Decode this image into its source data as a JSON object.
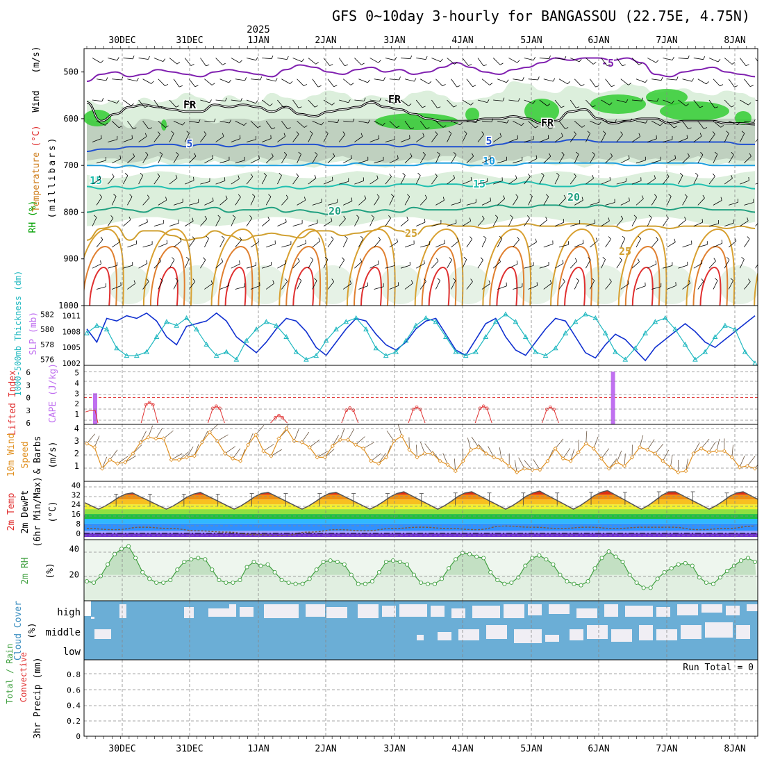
{
  "title": "GFS 0~10day 3-hourly for BANGASSOU (22.75E, 4.75N)",
  "year_label": "2025",
  "date_labels": [
    "30DEC",
    "31DEC",
    "1JAN",
    "2JAN",
    "3JAN",
    "4JAN",
    "5JAN",
    "6JAN",
    "7JAN",
    "8JAN"
  ],
  "run_total_label": "Run Total = 0",
  "colors": {
    "rh_green": "#33cc33",
    "rh_light": "#dcefdc",
    "rh_gray": "#b8c8b8",
    "slp": "#1030d0",
    "thickness": "#20b8c0",
    "cape": "#c070f0",
    "li": "#e03030",
    "wind_speed": "#e09020",
    "cloud": "#6baed6",
    "cloud_gap": "#f0eef4",
    "rh2m": "#40a040"
  },
  "panels": {
    "upper": {
      "ylabel_wind": "Wind",
      "ylabel_wind_unit": "(m/s)",
      "ylabel_temp": "Temperature",
      "ylabel_temp_unit": "(°C)",
      "ylabel_rh": "RH (%)",
      "ylabel_axis": "(millibars)",
      "yticks": [
        "500",
        "600",
        "700",
        "800",
        "900",
        "1000"
      ],
      "ylim": [
        450,
        1000
      ],
      "isotherms": [
        {
          "label": "-5",
          "value": -5,
          "pressure": [
            520,
            505,
            500,
            510,
            505,
            495,
            500,
            505,
            510,
            500,
            495,
            500,
            505,
            510,
            495,
            485,
            490,
            500,
            505,
            495,
            490,
            500,
            495,
            505,
            500,
            490,
            480,
            490,
            500,
            505,
            495,
            490,
            480,
            470,
            475,
            470,
            470,
            475,
            470,
            480,
            505,
            510,
            500,
            495,
            490,
            500,
            505,
            510
          ],
          "color": "#8020b0"
        },
        {
          "label": "FR",
          "value": 0,
          "pressure": [
            565,
            605,
            590,
            575,
            570,
            575,
            580,
            585,
            585,
            570,
            575,
            570,
            575,
            585,
            575,
            590,
            595,
            585,
            580,
            575,
            565,
            575,
            580,
            590,
            600,
            605,
            605,
            605,
            600,
            600,
            595,
            600,
            610,
            605,
            585,
            580,
            600,
            610,
            605,
            600,
            600,
            610,
            605,
            605,
            605,
            610,
            610,
            612
          ],
          "color": "#000000"
        },
        {
          "label": "5",
          "value": 5,
          "pressure": [
            670,
            665,
            665,
            660,
            660,
            655,
            655,
            660,
            655,
            655,
            660,
            655,
            655,
            660,
            655,
            655,
            655,
            660,
            660,
            655,
            655,
            655,
            660,
            655,
            660,
            660,
            660,
            660,
            660,
            655,
            650,
            650,
            650,
            650,
            645,
            645,
            650,
            650,
            650,
            650,
            650,
            650,
            650,
            650,
            650,
            650,
            655,
            655
          ],
          "color": "#2050d0"
        },
        {
          "label": "10",
          "value": 10,
          "pressure": [
            700,
            700,
            705,
            700,
            705,
            700,
            700,
            700,
            700,
            700,
            700,
            700,
            700,
            700,
            700,
            700,
            695,
            700,
            700,
            695,
            700,
            700,
            700,
            700,
            695,
            695,
            695,
            700,
            700,
            700,
            700,
            695,
            695,
            695,
            695,
            695,
            695,
            695,
            700,
            700,
            695,
            695,
            695,
            695,
            700,
            700,
            700,
            700
          ],
          "color": "#20a0e0"
        },
        {
          "label": "15",
          "value": 15,
          "pressure": [
            745,
            750,
            745,
            750,
            745,
            745,
            750,
            750,
            745,
            745,
            750,
            745,
            750,
            750,
            745,
            750,
            745,
            745,
            740,
            745,
            745,
            745,
            740,
            740,
            745,
            740,
            740,
            745,
            740,
            735,
            740,
            735,
            740,
            745,
            745,
            740,
            740,
            745,
            740,
            740,
            740,
            740,
            745,
            740,
            745,
            745,
            745,
            750
          ],
          "color": "#20c0b0"
        },
        {
          "label": "20",
          "value": 20,
          "pressure": [
            800,
            795,
            790,
            795,
            800,
            790,
            795,
            790,
            795,
            790,
            800,
            795,
            795,
            790,
            800,
            795,
            800,
            805,
            800,
            795,
            800,
            795,
            800,
            790,
            795,
            795,
            795,
            790,
            790,
            785,
            790,
            790,
            785,
            785,
            790,
            790,
            785,
            790,
            790,
            790,
            790,
            795,
            790,
            790,
            795,
            795,
            795,
            800
          ],
          "color": "#20a080"
        },
        {
          "label": "25",
          "value": 25,
          "pressure": [
            860,
            835,
            830,
            860,
            840,
            840,
            850,
            860,
            855,
            840,
            850,
            860,
            850,
            845,
            850,
            855,
            840,
            840,
            850,
            845,
            840,
            830,
            840,
            850,
            830,
            825,
            830,
            830,
            835,
            830,
            830,
            825,
            830,
            830,
            825,
            825,
            830,
            830,
            840,
            830,
            830,
            835,
            830,
            830,
            830,
            835,
            830,
            835
          ],
          "color": "#d0a030"
        }
      ],
      "rh_high_pressure_top": [
        560,
        570,
        560,
        580,
        555,
        565,
        560,
        545,
        555,
        570,
        550,
        560,
        565,
        545,
        555,
        560,
        550,
        540,
        545,
        560,
        550,
        555,
        560,
        545,
        540,
        550,
        565,
        560,
        555,
        545,
        520,
        525,
        540,
        545,
        530,
        535,
        545,
        540,
        525,
        530,
        545,
        540,
        535,
        545,
        550,
        540,
        545,
        555
      ],
      "rh_high_pressure_bottom": [
        700,
        695,
        695,
        705,
        700,
        690,
        700,
        695,
        700,
        690,
        700,
        705,
        690,
        700,
        695,
        700,
        705,
        695,
        690,
        700,
        700,
        705,
        700,
        695,
        700,
        690,
        690,
        705,
        695,
        700,
        700,
        690,
        695,
        700,
        695,
        705,
        695,
        700,
        690,
        700,
        695,
        700,
        700,
        690,
        700,
        695,
        700,
        700
      ]
    },
    "slp": {
      "ylabel_thk": "1000-500mb Thickness (dm)",
      "ylabel_slp": "SLP (mb)",
      "thk_ticks": [
        "582",
        "580",
        "578",
        "576"
      ],
      "slp_ticks": [
        "1011",
        "1008",
        "1005",
        "1002"
      ],
      "slp_lim": [
        1002,
        1012
      ],
      "slp": [
        1008.5,
        1006.0,
        1010.5,
        1010.0,
        1011.0,
        1010.5,
        1011.5,
        1010.0,
        1007.0,
        1005.5,
        1009.0,
        1009.5,
        1010.0,
        1011.5,
        1010.0,
        1007.0,
        1005.5,
        1004.0,
        1006.0,
        1008.5,
        1010.5,
        1010.0,
        1008.0,
        1005.0,
        1003.5,
        1006.0,
        1008.5,
        1010.5,
        1010.0,
        1007.5,
        1005.5,
        1004.5,
        1006.0,
        1008.5,
        1010.0,
        1010.5,
        1007.5,
        1004.5,
        1003.5,
        1006.5,
        1009.5,
        1010.5,
        1007.0,
        1004.5,
        1003.5,
        1006.0,
        1008.5,
        1010.5,
        1010.0,
        1007.0,
        1004.0,
        1003.0,
        1005.5,
        1007.5,
        1006.5,
        1004.5,
        1002.5,
        1005.0,
        1006.5,
        1008.0,
        1009.5,
        1008.0,
        1006.0,
        1005.0,
        1006.5,
        1008.0,
        1009.5,
        1011.0
      ],
      "thk": [
        579.5,
        580.5,
        580.0,
        577.5,
        576.5,
        576.5,
        577.0,
        579.0,
        581.0,
        580.5,
        581.5,
        580.0,
        578.0,
        576.5,
        577.0,
        576.0,
        578.5,
        580.0,
        581.0,
        580.5,
        579.0,
        577.0,
        576.0,
        576.5,
        578.5,
        580.0,
        581.0,
        581.5,
        580.0,
        577.5,
        576.5,
        577.0,
        578.5,
        580.5,
        581.5,
        581.0,
        579.0,
        577.0,
        576.5,
        577.0,
        579.0,
        581.0,
        582.0,
        581.0,
        579.0,
        577.0,
        576.5,
        577.5,
        579.5,
        581.0,
        582.0,
        581.5,
        579.5,
        577.0,
        576.0,
        577.5,
        579.5,
        581.0,
        581.5,
        580.0,
        578.0,
        576.0,
        577.0,
        579.0,
        580.5,
        580.0,
        577.0,
        575.5
      ]
    },
    "cape": {
      "ylabel_li": "Lifted Index",
      "ylabel_cape": "CAPE (J/kg)",
      "li_ticks": [
        "-6",
        "-3",
        "0",
        "3",
        "6"
      ],
      "cape_ticks": [
        "5",
        "4",
        "3",
        "2",
        "1"
      ],
      "cape_bars": [
        {
          "index": 1,
          "value": 3.0
        },
        {
          "index": 63,
          "value": 5.1
        }
      ],
      "li_segments": [
        [
          0,
          1.8
        ],
        [
          1,
          1.6
        ],
        [
          1,
          2.0
        ]
      ],
      "li_bumps": [
        {
          "center": 7.5,
          "height": 2.2
        },
        {
          "center": 15.5,
          "height": 1.8
        },
        {
          "center": 23.0,
          "height": 0.8
        },
        {
          "center": 31.5,
          "height": 1.6
        },
        {
          "center": 39.5,
          "height": 1.7
        },
        {
          "center": 47.5,
          "height": 1.8
        },
        {
          "center": 55.5,
          "height": 1.7
        }
      ]
    },
    "wind": {
      "ylabel1": "10m Wind",
      "ylabel2": "Speed",
      "ylabel3": "& Barbs",
      "ylabel_unit": "(m/s)",
      "yticks": [
        "4",
        "3",
        "2",
        "1"
      ],
      "ylim": [
        0,
        4
      ],
      "speed": [
        2.8,
        2.5,
        0.8,
        1.5,
        1.2,
        1.3,
        2.0,
        2.9,
        3.3,
        3.2,
        3.2,
        1.5,
        1.5,
        1.7,
        1.8,
        2.9,
        3.7,
        3.0,
        2.0,
        1.6,
        1.4,
        2.7,
        3.5,
        2.2,
        1.8,
        3.2,
        4.0,
        3.0,
        2.9,
        2.5,
        1.7,
        1.7,
        2.6,
        3.1,
        3.1,
        2.7,
        2.4,
        1.4,
        1.2,
        1.7,
        3.0,
        3.4,
        2.3,
        1.7,
        2.0,
        2.0,
        1.4,
        1.1,
        0.6,
        1.4,
        2.3,
        2.5,
        2.0,
        1.7,
        1.5,
        1.0,
        0.5,
        0.8,
        0.7,
        0.7,
        1.4,
        2.4,
        1.6,
        1.4,
        2.1,
        2.8,
        2.4,
        1.6,
        0.8,
        1.3,
        1.0,
        1.7,
        2.5,
        2.3,
        2.0,
        1.4,
        0.9,
        0.5,
        0.6,
        2.0,
        2.4,
        2.1,
        2.2,
        2.2,
        1.7,
        0.9,
        1.0,
        0.8
      ]
    },
    "temp": {
      "ylabel1": "2m Temp",
      "ylabel2": "2m DewPt",
      "ylabel3": "(6hr Min/Max)",
      "ylabel_unit": "(°C)",
      "yticks": [
        "40",
        "32",
        "24",
        "16",
        "8",
        "0"
      ],
      "ylim": [
        -3,
        42
      ],
      "temp_max_days": [
        33.5,
        33.5,
        34.0,
        34.0,
        34.0,
        34.5,
        34.5,
        35.0,
        35.5,
        34.5
      ],
      "temp_min": 20.0,
      "dewpt": [
        4,
        3,
        5,
        4,
        2,
        1,
        -1,
        -2,
        1,
        3,
        2,
        4,
        5,
        4,
        3,
        6,
        5,
        4,
        5,
        4,
        5,
        5,
        3,
        4,
        6
      ]
    },
    "rh2m": {
      "ylabel": "2m RH",
      "ylabel_unit": "(%)",
      "yticks": [
        "40",
        "20"
      ],
      "ylim": [
        0,
        45
      ],
      "values": [
        15,
        14,
        19,
        28,
        36,
        40,
        42,
        33,
        22,
        17,
        14,
        14,
        16,
        24,
        30,
        32,
        33,
        32,
        24,
        16,
        14,
        14,
        16,
        26,
        30,
        27,
        28,
        22,
        16,
        14,
        13,
        13,
        17,
        24,
        30,
        31,
        30,
        28,
        20,
        13,
        13,
        15,
        22,
        30,
        31,
        30,
        28,
        20,
        14,
        13,
        13,
        17,
        25,
        32,
        37,
        36,
        34,
        33,
        22,
        16,
        13,
        14,
        18,
        27,
        33,
        35,
        32,
        28,
        20,
        15,
        13,
        12,
        15,
        25,
        33,
        38,
        34,
        30,
        20,
        14,
        10,
        10,
        17,
        22,
        25,
        28,
        29,
        27,
        18,
        14,
        13,
        18,
        23,
        27,
        31,
        33,
        30
      ]
    },
    "cloud": {
      "ylabel": "Cloud Cover",
      "ylabel_unit": "(%)",
      "levels": [
        "high",
        "middle",
        "low"
      ]
    },
    "precip": {
      "ylabel1": "Total / Rain",
      "ylabel2": "Convective",
      "ylabel3": "3hr Precip (mm)",
      "yticks": [
        "0.8",
        "0.6",
        "0.4",
        "0.2",
        "0"
      ],
      "ylim": [
        0,
        1
      ]
    }
  }
}
